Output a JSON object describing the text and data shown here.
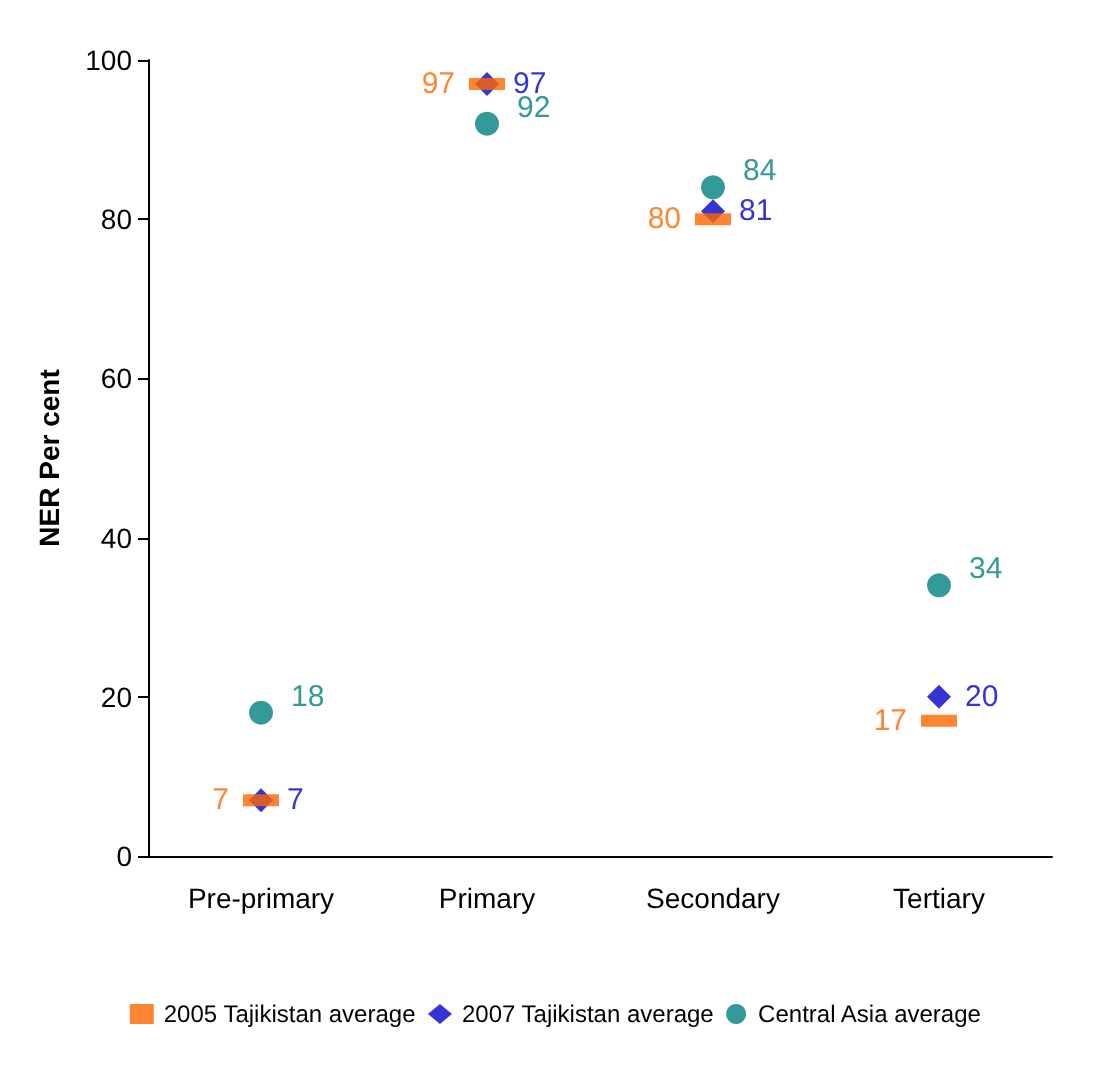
{
  "chart_data": {
    "type": "scatter",
    "ylabel": "NER Per cent",
    "categories": [
      "Pre-primary",
      "Primary",
      "Secondary",
      "Tertiary"
    ],
    "series": [
      {
        "name": "2005 Tajikistan average",
        "color": "#ff6600",
        "marker": "square",
        "values": [
          7,
          97,
          80,
          17
        ]
      },
      {
        "name": "2007 Tajikistan average",
        "color": "#0000cc",
        "marker": "diamond",
        "values": [
          7,
          97,
          81,
          20
        ]
      },
      {
        "name": "Central Asia average",
        "color": "#008080",
        "marker": "circle",
        "values": [
          18,
          92,
          84,
          34
        ]
      }
    ],
    "ylim": [
      0,
      100
    ],
    "yticks": [
      0,
      20,
      40,
      60,
      80,
      100
    ],
    "grid": false,
    "legend": "bottom",
    "data_labels": true
  }
}
